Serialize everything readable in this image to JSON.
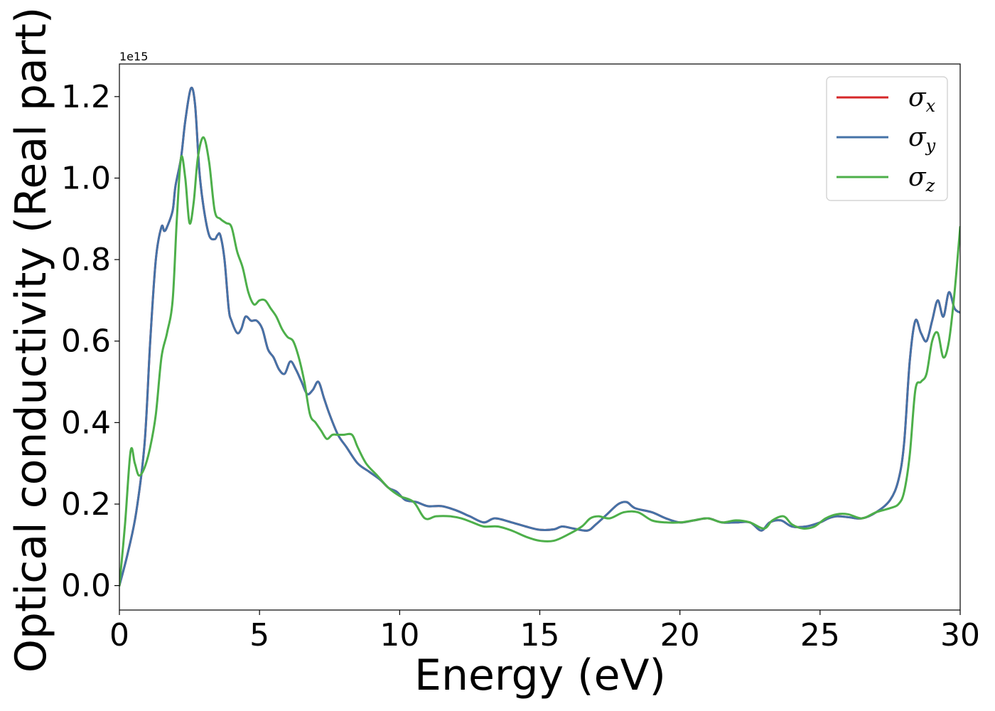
{
  "chart_data": {
    "type": "line",
    "title": "",
    "xlabel": "Energy (eV)",
    "ylabel": "Optical conductivity (Real part)",
    "y_offset_label": "1e15",
    "xlim": [
      0,
      30
    ],
    "ylim": [
      -0.06,
      1.28
    ],
    "xticks": [
      0,
      5,
      10,
      15,
      20,
      25,
      30
    ],
    "xtick_labels": [
      "0",
      "5",
      "10",
      "15",
      "20",
      "25",
      "30"
    ],
    "yticks": [
      0.0,
      0.2,
      0.4,
      0.6,
      0.8,
      1.0,
      1.2
    ],
    "ytick_labels": [
      "0.0",
      "0.2",
      "0.4",
      "0.6",
      "0.8",
      "1.0",
      "1.2"
    ],
    "grid": false,
    "legend_position": "top-right",
    "series": [
      {
        "name": "σx",
        "legend_symbol": "σ",
        "legend_sub": "x",
        "color": "#d62728",
        "x": [
          0,
          0.3,
          0.6,
          0.9,
          1.1,
          1.3,
          1.5,
          1.6,
          1.7,
          1.9,
          2.0,
          2.2,
          2.35,
          2.55,
          2.7,
          2.85,
          3.0,
          3.2,
          3.4,
          3.5,
          3.6,
          3.75,
          3.9,
          4.0,
          4.2,
          4.35,
          4.5,
          4.7,
          4.9,
          5.1,
          5.3,
          5.5,
          5.7,
          5.9,
          6.1,
          6.3,
          6.5,
          6.7,
          6.9,
          7.1,
          7.3,
          7.5,
          7.8,
          8.1,
          8.5,
          8.9,
          9.3,
          9.6,
          9.9,
          10.2,
          10.6,
          11.0,
          11.5,
          12.0,
          12.5,
          13.0,
          13.4,
          14.0,
          14.5,
          15.0,
          15.5,
          15.8,
          16.2,
          16.7,
          17.0,
          17.4,
          17.8,
          18.1,
          18.4,
          19.0,
          19.5,
          20.0,
          20.5,
          21.0,
          21.5,
          22.0,
          22.5,
          22.9,
          23.2,
          23.6,
          24.0,
          24.5,
          25.0,
          25.3,
          25.6,
          26.0,
          26.5,
          27.0,
          27.5,
          27.8,
          28.0,
          28.2,
          28.4,
          28.6,
          28.8,
          29.0,
          29.2,
          29.4,
          29.6,
          29.8,
          30.0
        ],
        "values": [
          0.0,
          0.08,
          0.18,
          0.35,
          0.6,
          0.8,
          0.88,
          0.87,
          0.88,
          0.92,
          0.98,
          1.05,
          1.14,
          1.22,
          1.18,
          1.02,
          0.93,
          0.86,
          0.85,
          0.86,
          0.86,
          0.8,
          0.68,
          0.65,
          0.62,
          0.63,
          0.66,
          0.65,
          0.65,
          0.63,
          0.58,
          0.56,
          0.53,
          0.52,
          0.55,
          0.53,
          0.5,
          0.47,
          0.48,
          0.5,
          0.46,
          0.42,
          0.37,
          0.34,
          0.3,
          0.28,
          0.26,
          0.24,
          0.23,
          0.21,
          0.205,
          0.195,
          0.195,
          0.185,
          0.17,
          0.155,
          0.165,
          0.155,
          0.145,
          0.137,
          0.138,
          0.145,
          0.14,
          0.135,
          0.15,
          0.175,
          0.2,
          0.205,
          0.19,
          0.18,
          0.165,
          0.155,
          0.16,
          0.165,
          0.155,
          0.155,
          0.155,
          0.135,
          0.155,
          0.16,
          0.145,
          0.145,
          0.155,
          0.165,
          0.17,
          0.168,
          0.165,
          0.18,
          0.21,
          0.26,
          0.35,
          0.55,
          0.65,
          0.62,
          0.6,
          0.65,
          0.7,
          0.66,
          0.72,
          0.68,
          0.67
        ]
      },
      {
        "name": "σy",
        "legend_symbol": "σ",
        "legend_sub": "y",
        "color": "#4572a7",
        "x": [
          0,
          0.3,
          0.6,
          0.9,
          1.1,
          1.3,
          1.5,
          1.6,
          1.7,
          1.9,
          2.0,
          2.2,
          2.35,
          2.55,
          2.7,
          2.85,
          3.0,
          3.2,
          3.4,
          3.5,
          3.6,
          3.75,
          3.9,
          4.0,
          4.2,
          4.35,
          4.5,
          4.7,
          4.9,
          5.1,
          5.3,
          5.5,
          5.7,
          5.9,
          6.1,
          6.3,
          6.5,
          6.7,
          6.9,
          7.1,
          7.3,
          7.5,
          7.8,
          8.1,
          8.5,
          8.9,
          9.3,
          9.6,
          9.9,
          10.2,
          10.6,
          11.0,
          11.5,
          12.0,
          12.5,
          13.0,
          13.4,
          14.0,
          14.5,
          15.0,
          15.5,
          15.8,
          16.2,
          16.7,
          17.0,
          17.4,
          17.8,
          18.1,
          18.4,
          19.0,
          19.5,
          20.0,
          20.5,
          21.0,
          21.5,
          22.0,
          22.5,
          22.9,
          23.2,
          23.6,
          24.0,
          24.5,
          25.0,
          25.3,
          25.6,
          26.0,
          26.5,
          27.0,
          27.5,
          27.8,
          28.0,
          28.2,
          28.4,
          28.6,
          28.8,
          29.0,
          29.2,
          29.4,
          29.6,
          29.8,
          30.0
        ],
        "values": [
          0.0,
          0.08,
          0.18,
          0.35,
          0.6,
          0.8,
          0.88,
          0.87,
          0.88,
          0.92,
          0.98,
          1.05,
          1.14,
          1.22,
          1.18,
          1.02,
          0.93,
          0.86,
          0.85,
          0.86,
          0.86,
          0.8,
          0.68,
          0.65,
          0.62,
          0.63,
          0.66,
          0.65,
          0.65,
          0.63,
          0.58,
          0.56,
          0.53,
          0.52,
          0.55,
          0.53,
          0.5,
          0.47,
          0.48,
          0.5,
          0.46,
          0.42,
          0.37,
          0.34,
          0.3,
          0.28,
          0.26,
          0.24,
          0.23,
          0.21,
          0.205,
          0.195,
          0.195,
          0.185,
          0.17,
          0.155,
          0.165,
          0.155,
          0.145,
          0.137,
          0.138,
          0.145,
          0.14,
          0.135,
          0.15,
          0.175,
          0.2,
          0.205,
          0.19,
          0.18,
          0.165,
          0.155,
          0.16,
          0.165,
          0.155,
          0.155,
          0.155,
          0.135,
          0.155,
          0.16,
          0.145,
          0.145,
          0.155,
          0.165,
          0.17,
          0.168,
          0.165,
          0.18,
          0.21,
          0.26,
          0.35,
          0.55,
          0.65,
          0.62,
          0.6,
          0.65,
          0.7,
          0.66,
          0.72,
          0.68,
          0.67
        ]
      },
      {
        "name": "σz",
        "legend_symbol": "σ",
        "legend_sub": "z",
        "color": "#4daf4a",
        "x": [
          0,
          0.2,
          0.4,
          0.55,
          0.7,
          0.9,
          1.1,
          1.3,
          1.5,
          1.7,
          1.9,
          2.05,
          2.2,
          2.35,
          2.5,
          2.65,
          2.8,
          3.0,
          3.2,
          3.4,
          3.6,
          3.8,
          4.0,
          4.2,
          4.4,
          4.6,
          4.8,
          5.0,
          5.2,
          5.4,
          5.6,
          5.8,
          6.0,
          6.2,
          6.4,
          6.6,
          6.8,
          7.0,
          7.2,
          7.4,
          7.6,
          7.8,
          8.0,
          8.3,
          8.5,
          8.8,
          9.2,
          9.6,
          10.0,
          10.5,
          10.9,
          11.3,
          11.8,
          12.2,
          12.6,
          13.0,
          13.5,
          14.0,
          14.5,
          15.0,
          15.5,
          16.0,
          16.5,
          16.8,
          17.1,
          17.5,
          18.0,
          18.5,
          19.0,
          19.5,
          20.0,
          20.5,
          21.0,
          21.5,
          22.0,
          22.5,
          23.0,
          23.3,
          23.7,
          24.0,
          24.4,
          24.8,
          25.2,
          25.6,
          26.0,
          26.5,
          27.0,
          27.5,
          27.8,
          28.0,
          28.2,
          28.4,
          28.6,
          28.8,
          29.0,
          29.2,
          29.4,
          29.6,
          29.8,
          30.0
        ],
        "values": [
          0.0,
          0.15,
          0.33,
          0.3,
          0.27,
          0.29,
          0.34,
          0.42,
          0.56,
          0.62,
          0.7,
          0.9,
          1.05,
          1.0,
          0.89,
          0.94,
          1.05,
          1.1,
          1.04,
          0.92,
          0.9,
          0.89,
          0.88,
          0.82,
          0.78,
          0.72,
          0.69,
          0.7,
          0.7,
          0.68,
          0.66,
          0.63,
          0.61,
          0.6,
          0.56,
          0.5,
          0.42,
          0.4,
          0.38,
          0.36,
          0.37,
          0.37,
          0.37,
          0.37,
          0.34,
          0.3,
          0.27,
          0.24,
          0.22,
          0.205,
          0.165,
          0.17,
          0.17,
          0.165,
          0.155,
          0.145,
          0.145,
          0.135,
          0.12,
          0.11,
          0.11,
          0.125,
          0.145,
          0.165,
          0.17,
          0.165,
          0.18,
          0.18,
          0.16,
          0.155,
          0.155,
          0.16,
          0.165,
          0.155,
          0.16,
          0.155,
          0.14,
          0.16,
          0.17,
          0.15,
          0.14,
          0.145,
          0.165,
          0.175,
          0.175,
          0.165,
          0.18,
          0.19,
          0.2,
          0.23,
          0.32,
          0.48,
          0.5,
          0.52,
          0.6,
          0.62,
          0.56,
          0.6,
          0.72,
          0.88
        ]
      }
    ]
  }
}
